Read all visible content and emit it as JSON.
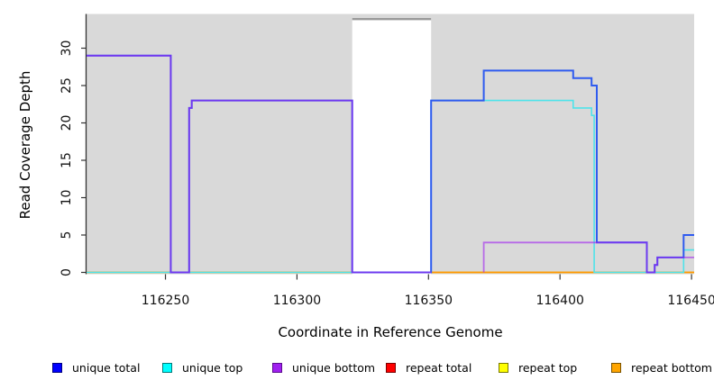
{
  "figure_title": "",
  "chart_data": {
    "type": "line",
    "subtype": "step-after-coverage",
    "title": "",
    "xlabel": "Coordinate in Reference Genome",
    "ylabel": "Read Coverage Depth",
    "xlim": [
      116220,
      116451
    ],
    "ylim": [
      0,
      34
    ],
    "x_ticks": [
      116250,
      116300,
      116350,
      116400,
      116450
    ],
    "y_ticks": [
      0,
      5,
      10,
      15,
      20,
      25,
      30
    ],
    "grid": false,
    "panel_color": "#D9D9D9",
    "gap_region": {
      "from": 116321,
      "to": 116351,
      "fill": "#FFFFFF",
      "top_border_color": "#999999"
    },
    "legend_position": "bottom",
    "series": [
      {
        "name": "unique total",
        "line_color": "#2F5BEF",
        "swatch_fill": "#0000FF",
        "swatch_border": "#000080",
        "line_width": 2,
        "opacity": 1,
        "segments": [
          [
            [
              116220,
              29
            ],
            [
              116252,
              0
            ],
            [
              116259,
              22
            ],
            [
              116260,
              23
            ],
            [
              116321,
              0
            ],
            [
              116351,
              23
            ],
            [
              116371,
              27
            ],
            [
              116405,
              26
            ],
            [
              116412,
              25
            ],
            [
              116414,
              4
            ],
            [
              116433,
              0
            ],
            [
              116436,
              1
            ],
            [
              116437,
              2
            ],
            [
              116447,
              5
            ],
            [
              116451,
              5
            ]
          ]
        ]
      },
      {
        "name": "unique top",
        "line_color": "#4FE3EA",
        "swatch_fill": "#00FFFF",
        "swatch_border": "#007A7A",
        "line_width": 1.6,
        "opacity": 1,
        "segments": [
          [
            [
              116220,
              0
            ],
            [
              116351,
              23
            ],
            [
              116405,
              22
            ],
            [
              116412,
              21
            ],
            [
              116413,
              0
            ],
            [
              116447,
              3
            ],
            [
              116451,
              3
            ]
          ]
        ]
      },
      {
        "name": "unique bottom",
        "line_color": "#A020F0",
        "swatch_fill": "#A020F0",
        "swatch_border": "#5A0B8E",
        "line_width": 1.8,
        "opacity": 0.6,
        "segments": [
          [
            [
              116220,
              29
            ],
            [
              116252,
              0
            ],
            [
              116259,
              22
            ],
            [
              116260,
              23
            ],
            [
              116321,
              0
            ],
            [
              116351,
              0
            ]
          ],
          [
            [
              116371,
              0
            ],
            [
              116371,
              4
            ],
            [
              116433,
              0
            ],
            [
              116436,
              1
            ],
            [
              116437,
              2
            ],
            [
              116451,
              2
            ]
          ]
        ]
      },
      {
        "name": "repeat total",
        "line_color": "#EE0000",
        "swatch_fill": "#FF0000",
        "swatch_border": "#7A0000",
        "line_width": 1.6,
        "opacity": 1,
        "segments": [
          [
            [
              116220,
              0
            ],
            [
              116451,
              0
            ]
          ]
        ]
      },
      {
        "name": "repeat top",
        "line_color": "#FFFF00",
        "swatch_fill": "#FFFF00",
        "swatch_border": "#7A7A00",
        "line_width": 1.6,
        "opacity": 1,
        "segments": [
          [
            [
              116220,
              0
            ],
            [
              116451,
              0
            ]
          ]
        ]
      },
      {
        "name": "repeat bottom",
        "line_color": "#FF9900",
        "swatch_fill": "#FFA500",
        "swatch_border": "#7A5200",
        "line_width": 1.6,
        "opacity": 1,
        "segments": [
          [
            [
              116220,
              0
            ],
            [
              116451,
              0
            ]
          ]
        ]
      }
    ]
  }
}
